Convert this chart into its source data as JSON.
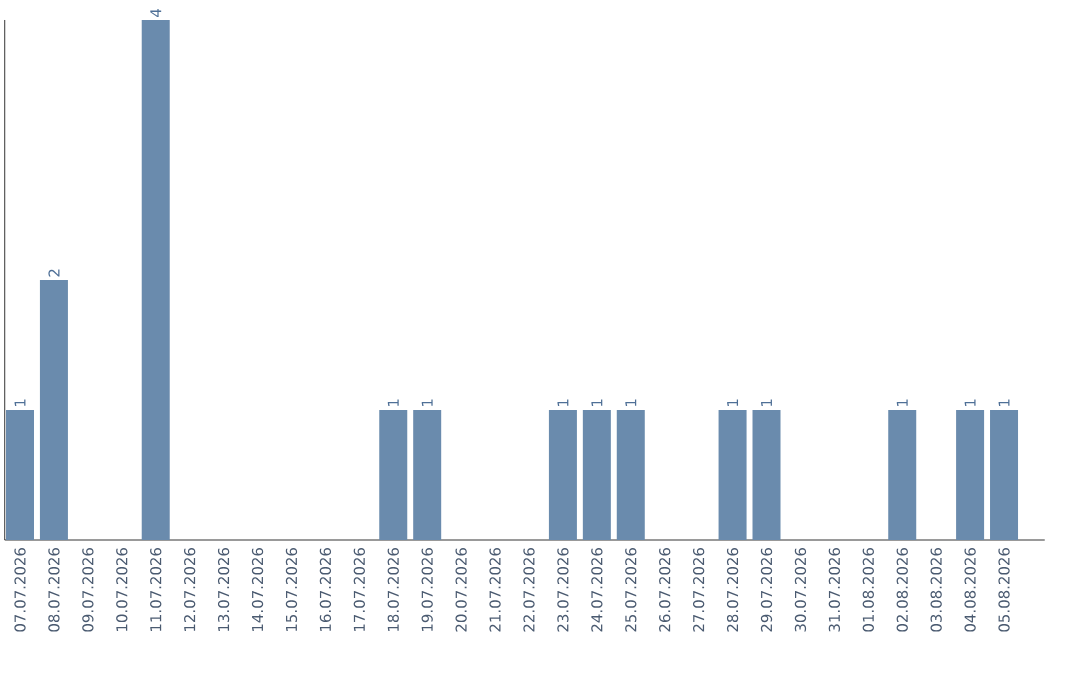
{
  "chart_data": {
    "type": "bar",
    "categories": [
      "07.07.2026",
      "08.07.2026",
      "09.07.2026",
      "10.07.2026",
      "11.07.2026",
      "12.07.2026",
      "13.07.2026",
      "14.07.2026",
      "15.07.2026",
      "16.07.2026",
      "17.07.2026",
      "18.07.2026",
      "19.07.2026",
      "20.07.2026",
      "21.07.2026",
      "22.07.2026",
      "23.07.2026",
      "24.07.2026",
      "25.07.2026",
      "26.07.2026",
      "27.07.2026",
      "28.07.2026",
      "29.07.2026",
      "30.07.2026",
      "31.07.2026",
      "01.08.2026",
      "02.08.2026",
      "03.08.2026",
      "04.08.2026",
      "05.08.2026"
    ],
    "values": [
      1,
      2,
      0,
      0,
      4,
      0,
      0,
      0,
      0,
      0,
      0,
      1,
      1,
      0,
      0,
      0,
      1,
      1,
      1,
      0,
      0,
      1,
      1,
      0,
      0,
      0,
      1,
      0,
      1,
      1
    ],
    "value_labels": [
      "1",
      "2",
      null,
      null,
      "4",
      null,
      null,
      null,
      null,
      null,
      null,
      "1",
      "1",
      null,
      null,
      null,
      "1",
      "1",
      "1",
      null,
      null,
      "1",
      "1",
      null,
      null,
      null,
      "1",
      null,
      "1",
      "1"
    ],
    "color": "#6a8bad",
    "tick_labels": "x"
  }
}
